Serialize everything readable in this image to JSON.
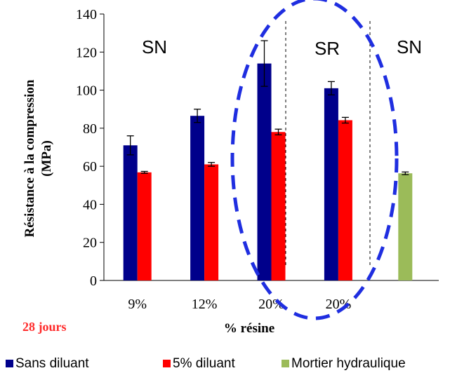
{
  "chart_data": {
    "type": "bar",
    "categories": [
      "9%",
      "12%",
      "20%",
      "20%",
      ""
    ],
    "series": [
      {
        "name": "Sans diluant",
        "color": "#00008b",
        "values": [
          71,
          86.5,
          114,
          101,
          null
        ],
        "errors": [
          5,
          3.5,
          12,
          3.5,
          null
        ]
      },
      {
        "name": "5% diluant",
        "color": "#ff0000",
        "values": [
          56.8,
          61,
          78,
          84.2,
          null
        ],
        "errors": [
          0.5,
          1,
          1.5,
          1.5,
          null
        ]
      },
      {
        "name": "Mortier hydraulique",
        "color": "#9bbb59",
        "values": [
          null,
          null,
          null,
          null,
          56.3
        ],
        "errors": [
          null,
          null,
          null,
          null,
          0.7
        ]
      }
    ],
    "xlabel": "% résine",
    "ylabel_line1": "Résistance à la compression",
    "ylabel_line2": "(MPa)",
    "ylim": [
      0,
      140
    ],
    "yticks": [
      "0",
      "20",
      "40",
      "60",
      "80",
      "100",
      "120",
      "140"
    ],
    "zone_labels": [
      "SN",
      "SR",
      "SN"
    ],
    "annotation": "28 jours",
    "legend_position": "bottom"
  }
}
